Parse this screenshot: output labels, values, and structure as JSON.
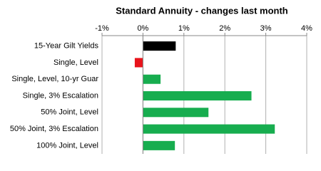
{
  "chart_data": {
    "type": "hbar",
    "title": "Standard Annuity  - changes last month",
    "categories": [
      "15-Year Gilt Yields",
      "Single, Level",
      "Single, Level, 10-yr Guar",
      "Single, 3% Escalation",
      "50% Joint, Level",
      "50% Joint, 3% Escalation",
      "100% Joint, Level"
    ],
    "values": [
      0.8,
      -0.2,
      0.43,
      2.65,
      1.6,
      3.22,
      0.78
    ],
    "colors": [
      "#000000",
      "#e8131b",
      "#17ad4f",
      "#17ad4f",
      "#17ad4f",
      "#17ad4f",
      "#17ad4f"
    ],
    "xlim": [
      -1,
      4
    ],
    "xticks": [
      {
        "value": -1,
        "label": "-1%"
      },
      {
        "value": 0,
        "label": "0%"
      },
      {
        "value": 1,
        "label": "1%"
      },
      {
        "value": 2,
        "label": "2%"
      },
      {
        "value": 3,
        "label": "3%"
      },
      {
        "value": 4,
        "label": "4%"
      }
    ],
    "grid": true
  }
}
